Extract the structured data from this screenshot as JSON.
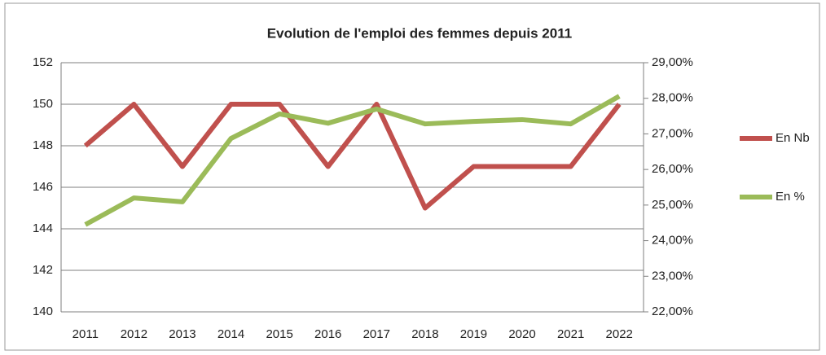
{
  "chart_data": {
    "type": "line",
    "title": "Evolution de l'emploi des femmes depuis 2011",
    "categories": [
      "2011",
      "2012",
      "2013",
      "2014",
      "2015",
      "2016",
      "2017",
      "2018",
      "2019",
      "2020",
      "2021",
      "2022"
    ],
    "series": [
      {
        "name": "En Nb",
        "color": "#c0504d",
        "values": [
          148,
          150,
          147,
          150,
          150,
          147,
          150,
          145,
          147,
          147,
          147,
          150
        ]
      },
      {
        "name": "En %",
        "color": "#9bbb59",
        "axis": "y2",
        "values": [
          24.45,
          25.2,
          25.09,
          26.87,
          27.56,
          27.3,
          27.7,
          27.28,
          27.35,
          27.4,
          27.28,
          28.06
        ]
      }
    ],
    "ylim": [
      140,
      152
    ],
    "yticks": [
      140,
      142,
      144,
      146,
      148,
      150,
      152
    ],
    "y2lim": [
      22,
      29
    ],
    "y2ticks": [
      {
        "value": 22,
        "label": "22,00%"
      },
      {
        "value": 23,
        "label": "23,00%"
      },
      {
        "value": 24,
        "label": "24,00%"
      },
      {
        "value": 25,
        "label": "25,00%"
      },
      {
        "value": 26,
        "label": "26,00%"
      },
      {
        "value": 27,
        "label": "27,00%"
      },
      {
        "value": 28,
        "label": "28,00%"
      },
      {
        "value": 29,
        "label": "29,00%"
      }
    ],
    "grid": true,
    "legend": "right"
  }
}
